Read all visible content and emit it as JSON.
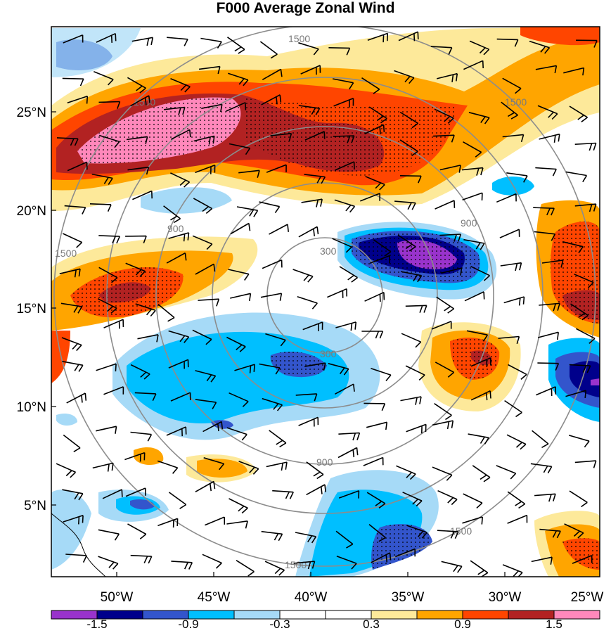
{
  "title": "F000 Average Zonal Wind",
  "lat_labels": [
    "25°N",
    "20°N",
    "15°N",
    "10°N",
    "5°N"
  ],
  "lon_labels": [
    "50°W",
    "45°W",
    "40°W",
    "35°W",
    "30°W",
    "25°W"
  ],
  "colorbar": {
    "labels": [
      "-1.5",
      "-0.9",
      "-0.3",
      "0.3",
      "0.9",
      "1.5"
    ],
    "colors": [
      "#9933cc",
      "#00008b",
      "#3355cc",
      "#00bfff",
      "#a6daf7",
      "#ffffff",
      "#ffffff",
      "#fde99a",
      "#ffa500",
      "#ff4500",
      "#b22222",
      "#ff88bb"
    ]
  },
  "range_ring_labels": [
    "300",
    "900",
    "1500"
  ]
}
